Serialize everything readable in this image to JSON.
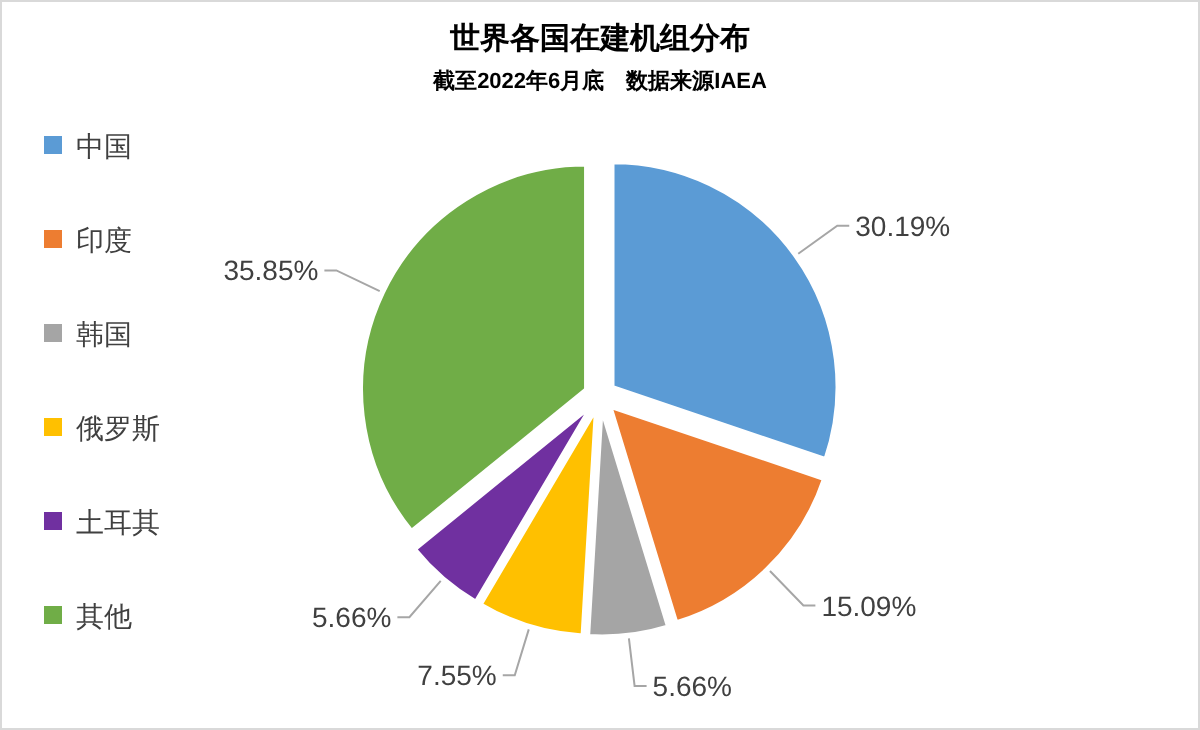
{
  "chart_data": {
    "type": "pie",
    "title": "世界各国在建机组分布",
    "subtitle": "截至2022年6月底　数据来源IAEA",
    "categories": [
      "中国",
      "印度",
      "韩国",
      "俄罗斯",
      "土耳其",
      "其他"
    ],
    "values": [
      30.19,
      15.09,
      5.66,
      7.55,
      5.66,
      35.85
    ],
    "colors": [
      "#5b9bd5",
      "#ed7d31",
      "#a5a5a5",
      "#ffc000",
      "#7030a0",
      "#70ad47"
    ],
    "value_labels": [
      "30.19%",
      "15.09%",
      "5.66%",
      "7.55%",
      "5.66%",
      "35.85%"
    ],
    "legend": "left"
  }
}
